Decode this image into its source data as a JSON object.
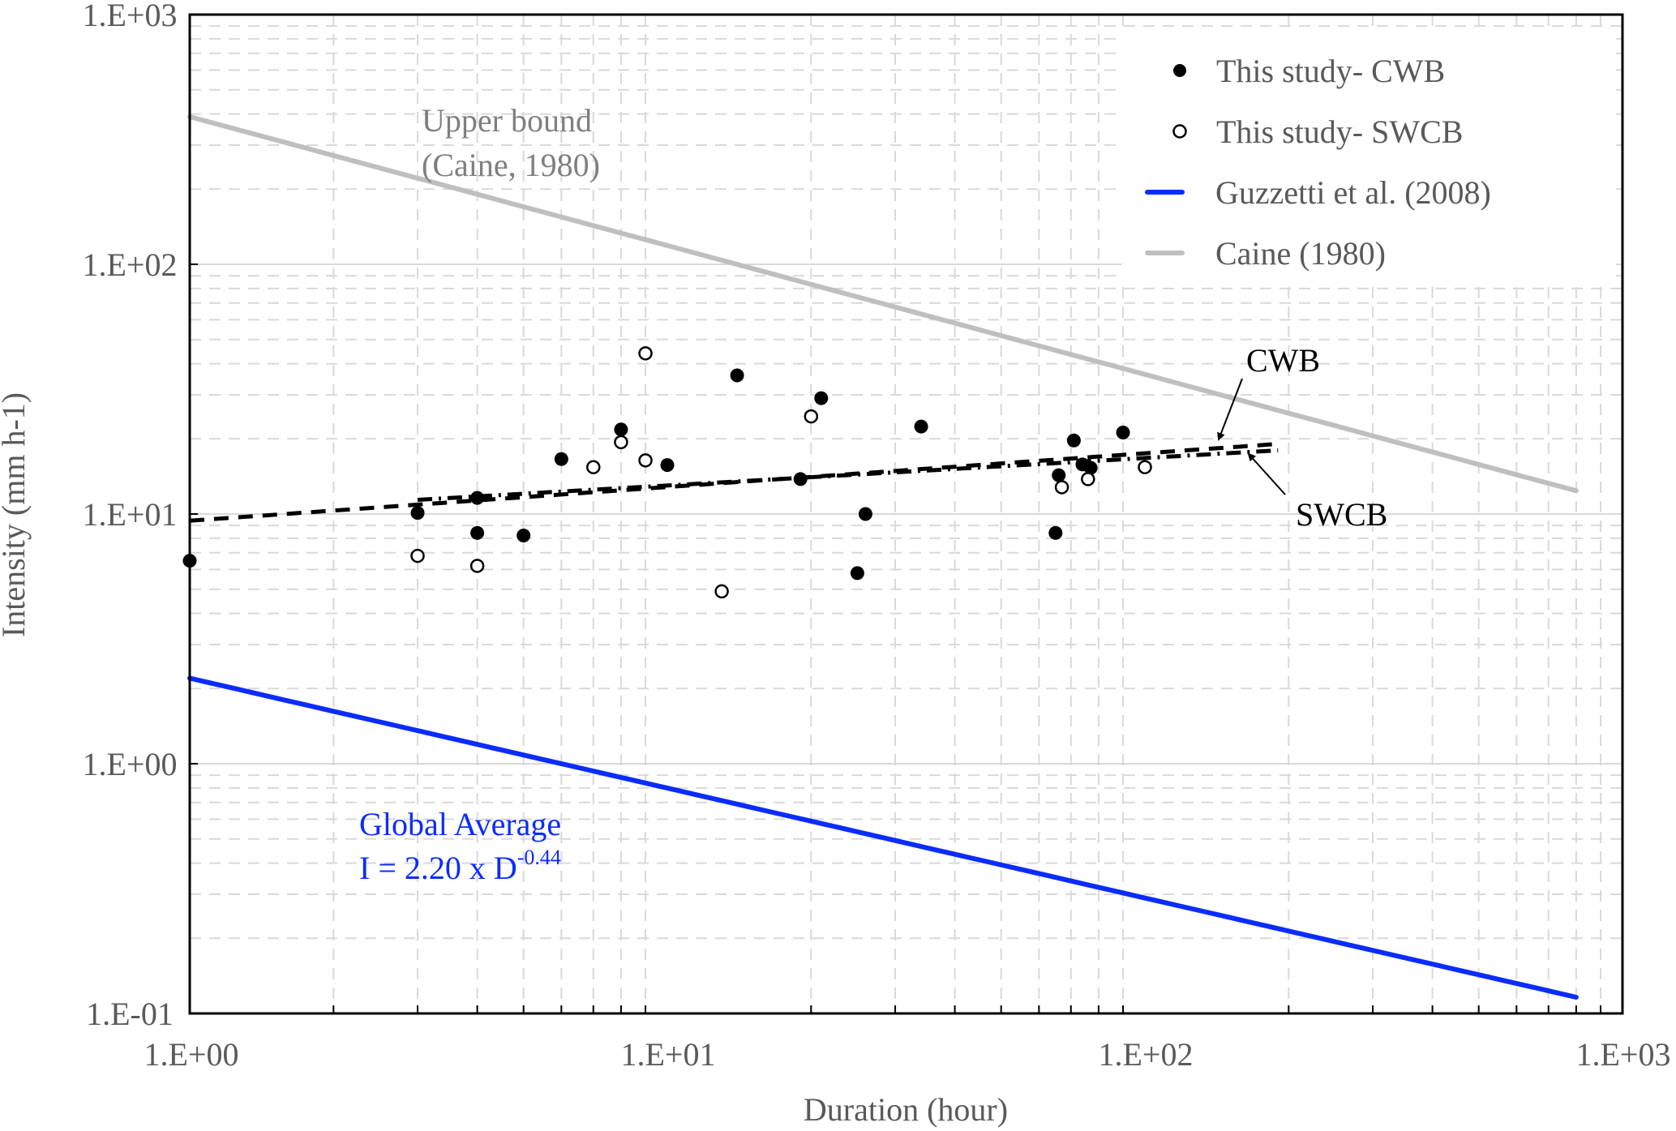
{
  "chart_data": {
    "type": "scatter",
    "title": "",
    "xlabel": "Duration (hour)",
    "ylabel": "Intensity (mm h-1)",
    "xscale": "log",
    "yscale": "log",
    "xlim": [
      1,
      1000
    ],
    "ylim": [
      0.1,
      1000
    ],
    "xticks": [
      1,
      10,
      100,
      1000
    ],
    "xtick_labels": [
      "1.E+00",
      "1.E+01",
      "1.E+02",
      "1.E+03"
    ],
    "yticks": [
      0.1,
      1,
      10,
      100,
      1000
    ],
    "ytick_labels": [
      "1.E-01",
      "1.E+00",
      "1.E+01",
      "1.E+02",
      "1.E+03"
    ],
    "grid": true,
    "legend_position": "top-right",
    "series": [
      {
        "name": "This study- CWB",
        "kind": "scatter",
        "marker": "filled-circle",
        "color": "#000000",
        "points": [
          [
            1.0,
            6.5
          ],
          [
            3.0,
            10.1
          ],
          [
            4.0,
            11.6
          ],
          [
            4.0,
            8.4
          ],
          [
            5.0,
            8.2
          ],
          [
            6.0,
            16.6
          ],
          [
            8.0,
            21.8
          ],
          [
            10.0,
            15.7
          ],
          [
            14.0,
            35.9
          ],
          [
            19.0,
            13.8
          ],
          [
            21.0,
            29.1
          ],
          [
            25.0,
            5.8
          ],
          [
            26.0,
            10.0
          ],
          [
            34.0,
            22.4
          ],
          [
            65.0,
            8.4
          ],
          [
            66.0,
            14.3
          ],
          [
            71.0,
            19.7
          ],
          [
            74.0,
            15.8
          ],
          [
            77.0,
            15.3
          ],
          [
            90.0,
            21.2
          ]
        ]
      },
      {
        "name": "This study- SWCB",
        "kind": "scatter",
        "marker": "open-circle",
        "color": "#000000",
        "points": [
          [
            3.0,
            6.8
          ],
          [
            4.0,
            6.2
          ],
          [
            7.0,
            15.4
          ],
          [
            8.0,
            19.4
          ],
          [
            9.0,
            44.0
          ],
          [
            9.0,
            16.4
          ],
          [
            13.0,
            4.9
          ],
          [
            20.0,
            24.6
          ],
          [
            67.0,
            12.8
          ],
          [
            76.0,
            13.8
          ],
          [
            100.0,
            15.4
          ]
        ]
      },
      {
        "name": "Guzzetti et al. (2008)",
        "kind": "line",
        "color": "#0a2cff",
        "equation": "I = 2.20 x D^-0.44",
        "coef": 2.2,
        "exponent": -0.44,
        "x_range": [
          1,
          800
        ]
      },
      {
        "name": "Caine (1980)",
        "kind": "line",
        "color": "#bfbfbf",
        "coef": 390,
        "exponent": -0.516,
        "x_range": [
          1,
          800
        ]
      },
      {
        "name": "CWB",
        "kind": "trendline",
        "style": "dashed",
        "color": "#000000",
        "coef": 9.4,
        "exponent": 0.135,
        "x_range": [
          1,
          190
        ],
        "in_legend": false
      },
      {
        "name": "SWCB",
        "kind": "trendline",
        "style": "dash-dot",
        "color": "#000000",
        "coef": 10.1,
        "exponent": 0.11,
        "x_range": [
          3,
          190
        ],
        "in_legend": false
      }
    ],
    "annotations": {
      "upper_bound_line1": "Upper bound",
      "upper_bound_line2": "(Caine, 1980)",
      "global_avg_line1": "Global Average",
      "global_avg_eq": "I = 2.20 x D",
      "global_avg_exp": "-0.44",
      "cwb_label": "CWB",
      "swcb_label": "SWCB"
    },
    "legend": [
      {
        "label": "This study- CWB",
        "symbol": "filled-circle"
      },
      {
        "label": "This study- SWCB",
        "symbol": "open-circle"
      },
      {
        "label": "Guzzetti et al. (2008)",
        "symbol": "blue-line"
      },
      {
        "label": "Caine (1980)",
        "symbol": "gray-line"
      }
    ]
  }
}
